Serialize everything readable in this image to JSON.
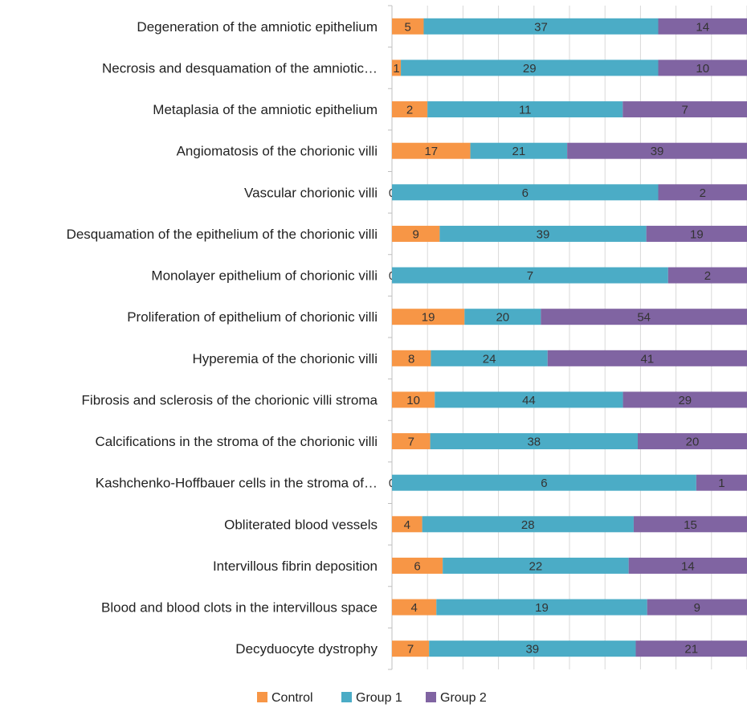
{
  "chart_data": {
    "type": "bar",
    "orientation": "horizontal",
    "stacked": "percent",
    "grid": true,
    "legend_position": "bottom",
    "categories": [
      "Degeneration of the amniotic epithelium",
      "Necrosis and desquamation of the amniotic…",
      "Metaplasia of the amniotic epithelium",
      "Angiomatosis of the chorionic villi",
      "Vascular chorionic villi",
      "Desquamation of the epithelium of the chorionic villi",
      "Monolayer epithelium of chorionic villi",
      "Proliferation of epithelium of chorionic villi",
      "Hyperemia of the chorionic villi",
      "Fibrosis and sclerosis of the chorionic villi stroma",
      "Calcifications in the stroma of the chorionic villi",
      "Kashchenko-Hoffbauer cells in the stroma of…",
      "Obliterated blood vessels",
      "Intervillous fibrin deposition",
      "Blood and blood clots in the intervillous space",
      "Decyduocyte dystrophy"
    ],
    "series": [
      {
        "name": "Control",
        "color": "#F79646",
        "values": [
          5,
          1,
          2,
          17,
          0,
          9,
          0,
          19,
          8,
          10,
          7,
          0,
          4,
          6,
          4,
          7
        ]
      },
      {
        "name": "Group 1",
        "color": "#4BACC6",
        "values": [
          37,
          29,
          11,
          21,
          6,
          39,
          7,
          20,
          24,
          44,
          38,
          6,
          28,
          22,
          19,
          39
        ]
      },
      {
        "name": "Group 2",
        "color": "#8064A2",
        "values": [
          14,
          10,
          7,
          39,
          2,
          19,
          2,
          54,
          41,
          29,
          20,
          1,
          15,
          14,
          9,
          21
        ]
      }
    ]
  }
}
